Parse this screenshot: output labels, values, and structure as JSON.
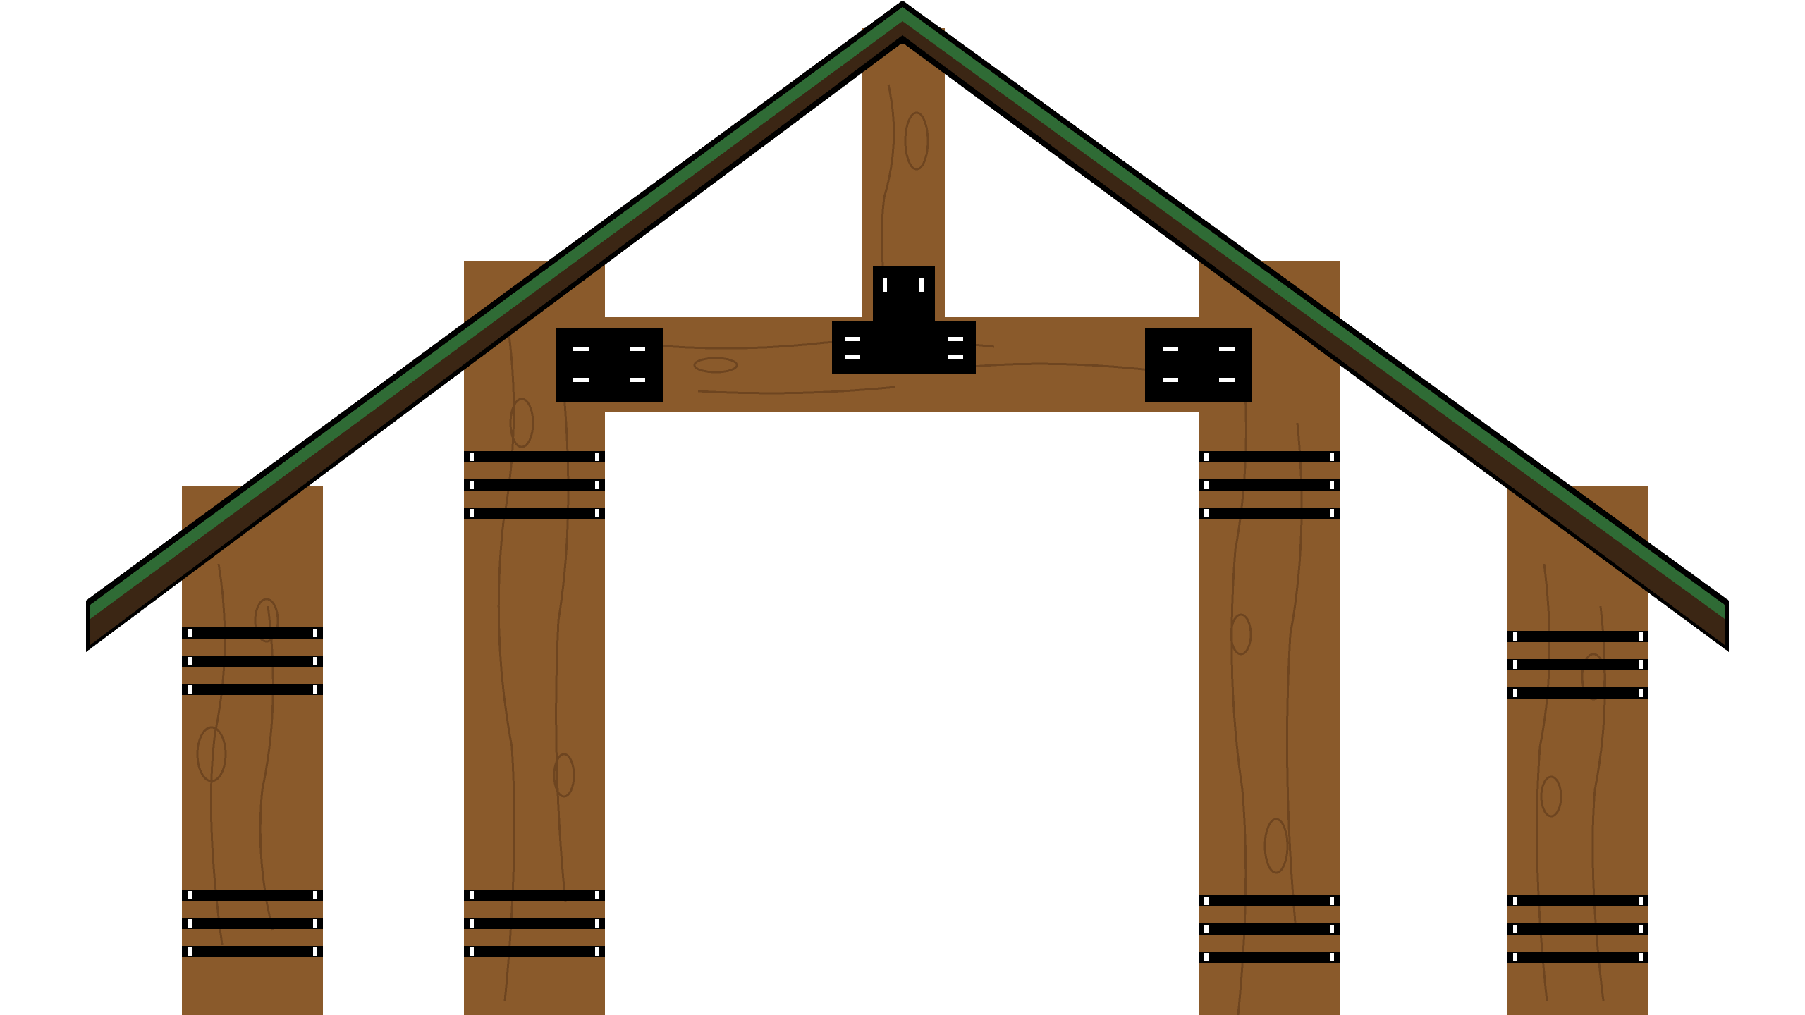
{
  "sprite": {
    "name": "wooden-gate-frame",
    "style": "pixel-art",
    "colors": {
      "background": "#ffffff",
      "wood": "#8a5a2b",
      "wood_grain": "#6e4520",
      "roof_top": "#2f6b35",
      "roof_underside": "#3b2614",
      "outline": "#000000",
      "iron": "#000000",
      "bolt": "#ffffff"
    },
    "parts": {
      "roof": {
        "icon": "gable-roof"
      },
      "posts": [
        {
          "id": "post-outer-left",
          "bands": 2
        },
        {
          "id": "post-inner-left",
          "bands": 2
        },
        {
          "id": "post-inner-right",
          "bands": 2
        },
        {
          "id": "post-outer-right",
          "bands": 2
        }
      ],
      "king_post": {
        "icon": "vertical-beam"
      },
      "crossbeam": {
        "icon": "horizontal-beam"
      },
      "brackets": [
        {
          "id": "bracket-left",
          "icon": "iron-plate"
        },
        {
          "id": "bracket-center",
          "icon": "iron-t-plate"
        },
        {
          "id": "bracket-right",
          "icon": "iron-plate"
        }
      ]
    }
  }
}
